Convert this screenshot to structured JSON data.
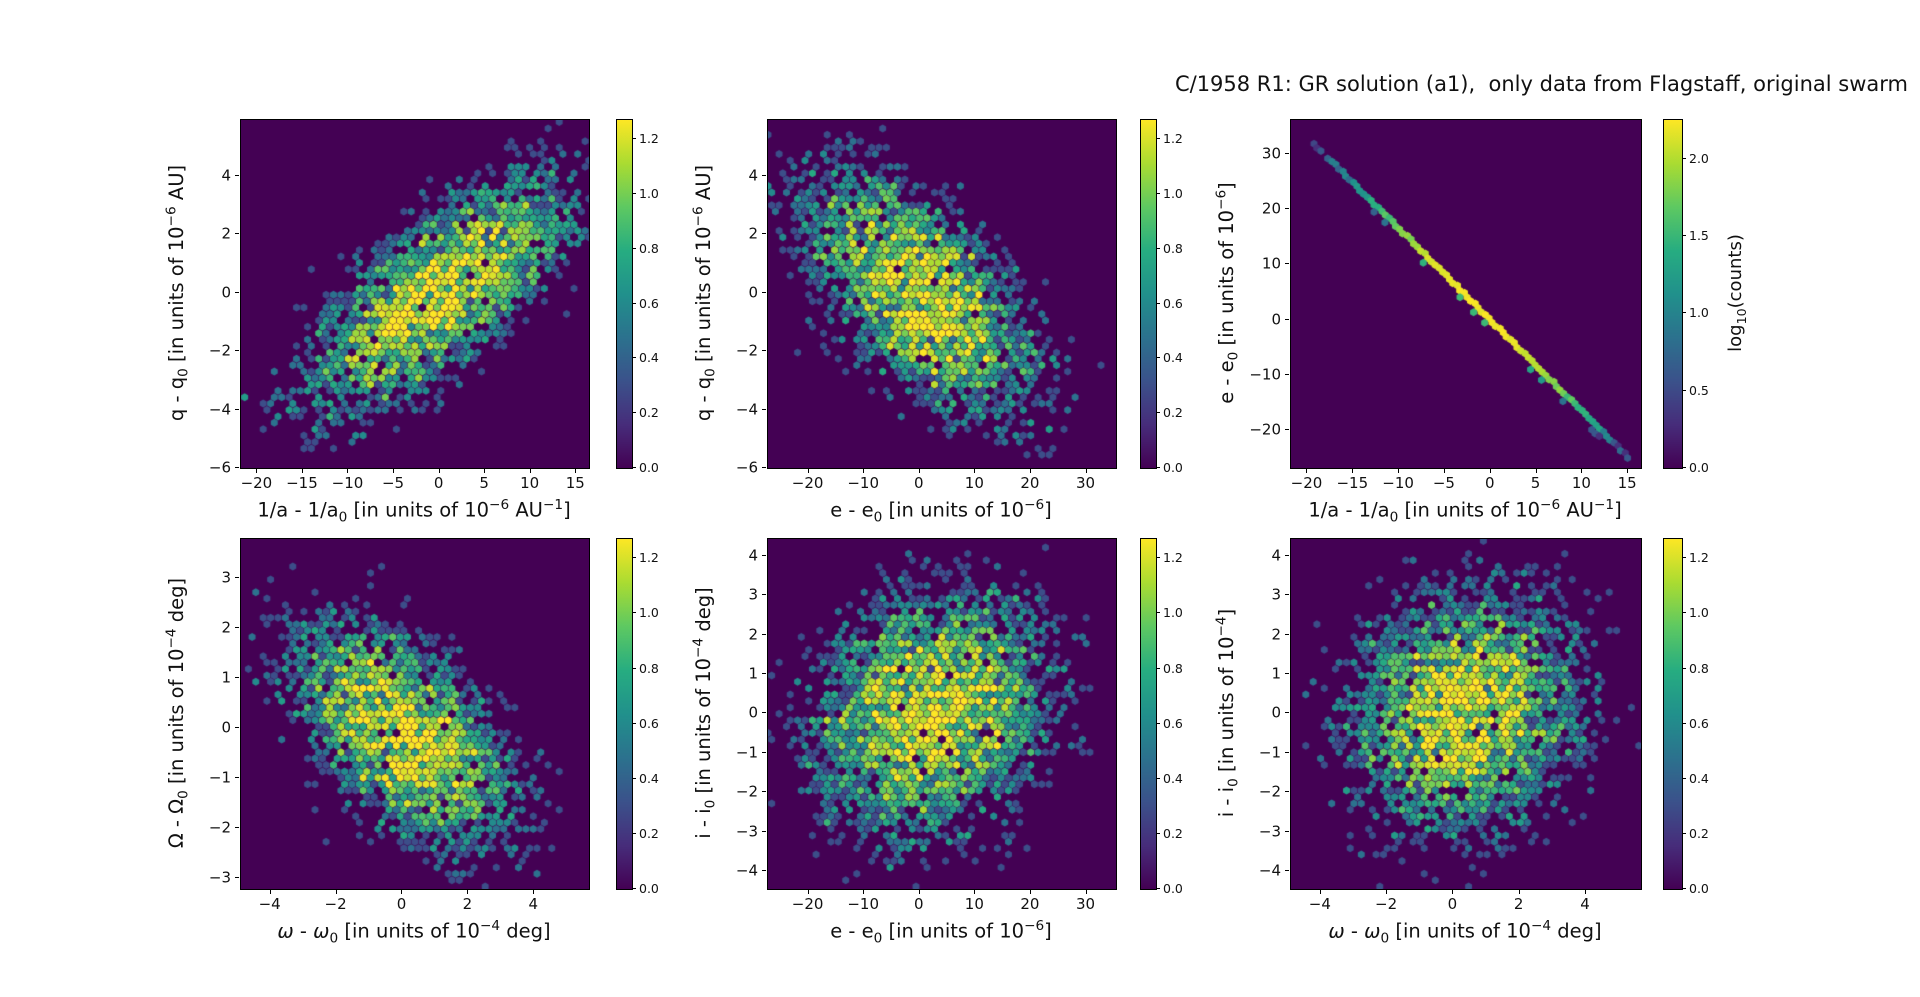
{
  "title": "C/1958 R1: GR solution (a1),  only data from Flagstaff, original swarm",
  "colormap": "viridis",
  "colors": {
    "figure_background": "#ffffff",
    "bin_zero": "#440154",
    "bin_peak": "#fde725",
    "axis": "#000000"
  },
  "chart_data": [
    {
      "id": "q-vs-1overa",
      "type": "hexbin",
      "position": "top-left",
      "xlabel": "1/a - 1/a_{0} [in units of 10^{−6} AU^{−1}]",
      "ylabel": "q - q_{0} [in units of 10^{−6} AU]",
      "xlim": [
        -21.8,
        16.4
      ],
      "ylim": [
        -6,
        5.9
      ],
      "xticks": [
        -20,
        -15,
        -10,
        -5,
        0,
        5,
        10,
        15
      ],
      "yticks": [
        4,
        2,
        0,
        -2,
        -4,
        -6
      ],
      "distribution": {
        "shape": "gaussian",
        "center": [
          0,
          0
        ],
        "sigma": [
          7.5,
          2.1
        ],
        "correlation": 0.72,
        "peak_log10_counts": 1.25
      },
      "colorbar": {
        "ticks": [
          0.0,
          0.2,
          0.4,
          0.6,
          0.8,
          1.0,
          1.2
        ],
        "vmax": 1.27,
        "label": ""
      }
    },
    {
      "id": "q-vs-e",
      "type": "hexbin",
      "position": "top-middle",
      "xlabel": "e - e_{0} [in units of 10^{−6}]",
      "ylabel": "q - q_{0} [in units of 10^{−6} AU]",
      "xlim": [
        -27.3,
        35.3
      ],
      "ylim": [
        -6,
        5.9
      ],
      "xticks": [
        -20,
        -10,
        0,
        10,
        20,
        30
      ],
      "yticks": [
        4,
        2,
        0,
        -2,
        -4,
        -6
      ],
      "distribution": {
        "shape": "gaussian",
        "center": [
          0,
          0
        ],
        "sigma": [
          10.5,
          2.1
        ],
        "correlation": -0.6,
        "peak_log10_counts": 1.25
      },
      "colorbar": {
        "ticks": [
          0.0,
          0.2,
          0.4,
          0.6,
          0.8,
          1.0,
          1.2
        ],
        "vmax": 1.27,
        "label": ""
      }
    },
    {
      "id": "e-vs-1overa",
      "type": "hexbin-line",
      "position": "top-right",
      "xlabel": "1/a - 1/a_{0} [in units of 10^{−6} AU^{−1}]",
      "ylabel": "e - e_{0} [in units of 10^{−6}]",
      "xlim": [
        -21.8,
        16.4
      ],
      "ylim": [
        -26.9,
        36.2
      ],
      "xticks": [
        -20,
        -15,
        -10,
        -5,
        0,
        5,
        10,
        15
      ],
      "yticks": [
        30,
        20,
        10,
        0,
        -10,
        -20
      ],
      "line": {
        "from": [
          -19.3,
          31.9
        ],
        "to": [
          15.4,
          -25.6
        ],
        "peak_log10_counts": 2.25,
        "peak_t": 0.52,
        "sigma_t": 0.17
      },
      "colorbar": {
        "ticks": [
          0.0,
          0.5,
          1.0,
          1.5,
          2.0
        ],
        "vmax": 2.25,
        "label": "log_{10}(counts)"
      }
    },
    {
      "id": "Omega-vs-omega",
      "type": "hexbin",
      "position": "bottom-left",
      "xlabel": "$ω$ - $ω$_{0} [in units of 10^{−4} deg]",
      "ylabel": "Ω - Ω_{0} [in units of 10^{−4} deg]",
      "xlim": [
        -4.9,
        5.66
      ],
      "ylim": [
        -3.22,
        3.78
      ],
      "xticks": [
        -4,
        -2,
        0,
        2,
        4
      ],
      "yticks": [
        3,
        2,
        1,
        0,
        -1,
        -2,
        -3
      ],
      "distribution": {
        "shape": "gaussian",
        "center": [
          0,
          -0.1
        ],
        "sigma": [
          1.75,
          1.15
        ],
        "correlation": -0.55,
        "peak_log10_counts": 1.25
      },
      "colorbar": {
        "ticks": [
          0.0,
          0.2,
          0.4,
          0.6,
          0.8,
          1.0,
          1.2
        ],
        "vmax": 1.27,
        "label": ""
      }
    },
    {
      "id": "i-vs-e",
      "type": "hexbin",
      "position": "bottom-middle",
      "xlabel": "e - e_{0} [in units of 10^{−6}]",
      "ylabel": "i - i_{0} [in units of 10^{−4} deg]",
      "xlim": [
        -27.3,
        35.3
      ],
      "ylim": [
        -4.46,
        4.43
      ],
      "xticks": [
        -20,
        -10,
        0,
        10,
        20,
        30
      ],
      "yticks": [
        4,
        3,
        2,
        1,
        0,
        -1,
        -2,
        -3,
        -4
      ],
      "distribution": {
        "shape": "gaussian",
        "center": [
          2,
          0
        ],
        "sigma": [
          10.5,
          1.6
        ],
        "correlation": 0.18,
        "peak_log10_counts": 1.25
      },
      "colorbar": {
        "ticks": [
          0.0,
          0.2,
          0.4,
          0.6,
          0.8,
          1.0,
          1.2
        ],
        "vmax": 1.27,
        "label": ""
      }
    },
    {
      "id": "i-vs-omega",
      "type": "hexbin",
      "position": "bottom-right",
      "xlabel": "$ω$ - $ω$_{0} [in units of 10^{−4} deg]",
      "ylabel": "i - i_{0} [in units of 10^{−4}]",
      "xlim": [
        -4.9,
        5.66
      ],
      "ylim": [
        -4.46,
        4.43
      ],
      "xticks": [
        -4,
        -2,
        0,
        2,
        4
      ],
      "yticks": [
        4,
        3,
        2,
        1,
        0,
        -1,
        -2,
        -3,
        -4
      ],
      "distribution": {
        "shape": "gaussian",
        "center": [
          0.3,
          0
        ],
        "sigma": [
          1.75,
          1.55
        ],
        "correlation": 0.1,
        "peak_log10_counts": 1.25
      },
      "colorbar": {
        "ticks": [
          0.0,
          0.2,
          0.4,
          0.6,
          0.8,
          1.0,
          1.2
        ],
        "vmax": 1.27,
        "label": ""
      }
    }
  ]
}
